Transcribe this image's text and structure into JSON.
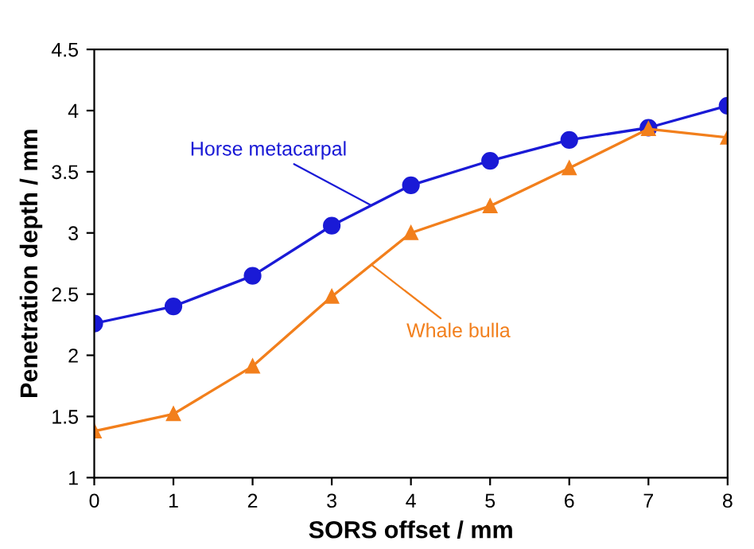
{
  "chart_data": {
    "type": "line",
    "xlabel": "SORS offset / mm",
    "ylabel": "Penetration depth / mm",
    "x": [
      0,
      1,
      2,
      3,
      4,
      5,
      6,
      7,
      8
    ],
    "series": [
      {
        "name": "Horse metacarpal",
        "color": "#1a1ad6",
        "marker": "circle",
        "values": [
          2.26,
          2.4,
          2.65,
          3.06,
          3.39,
          3.59,
          3.76,
          3.86,
          4.04
        ]
      },
      {
        "name": "Whale bulla",
        "color": "#f27f1c",
        "marker": "triangle",
        "values": [
          1.38,
          1.52,
          1.91,
          2.48,
          3.0,
          3.22,
          3.53,
          3.85,
          3.78
        ]
      }
    ],
    "xlim": [
      0,
      8
    ],
    "xticks": [
      0,
      1,
      2,
      3,
      4,
      5,
      6,
      7,
      8
    ],
    "ylim": [
      1,
      4.5
    ],
    "yticks": [
      1,
      1.5,
      2,
      2.5,
      3,
      3.5,
      4,
      4.5
    ],
    "grid": false,
    "legend": false
  }
}
